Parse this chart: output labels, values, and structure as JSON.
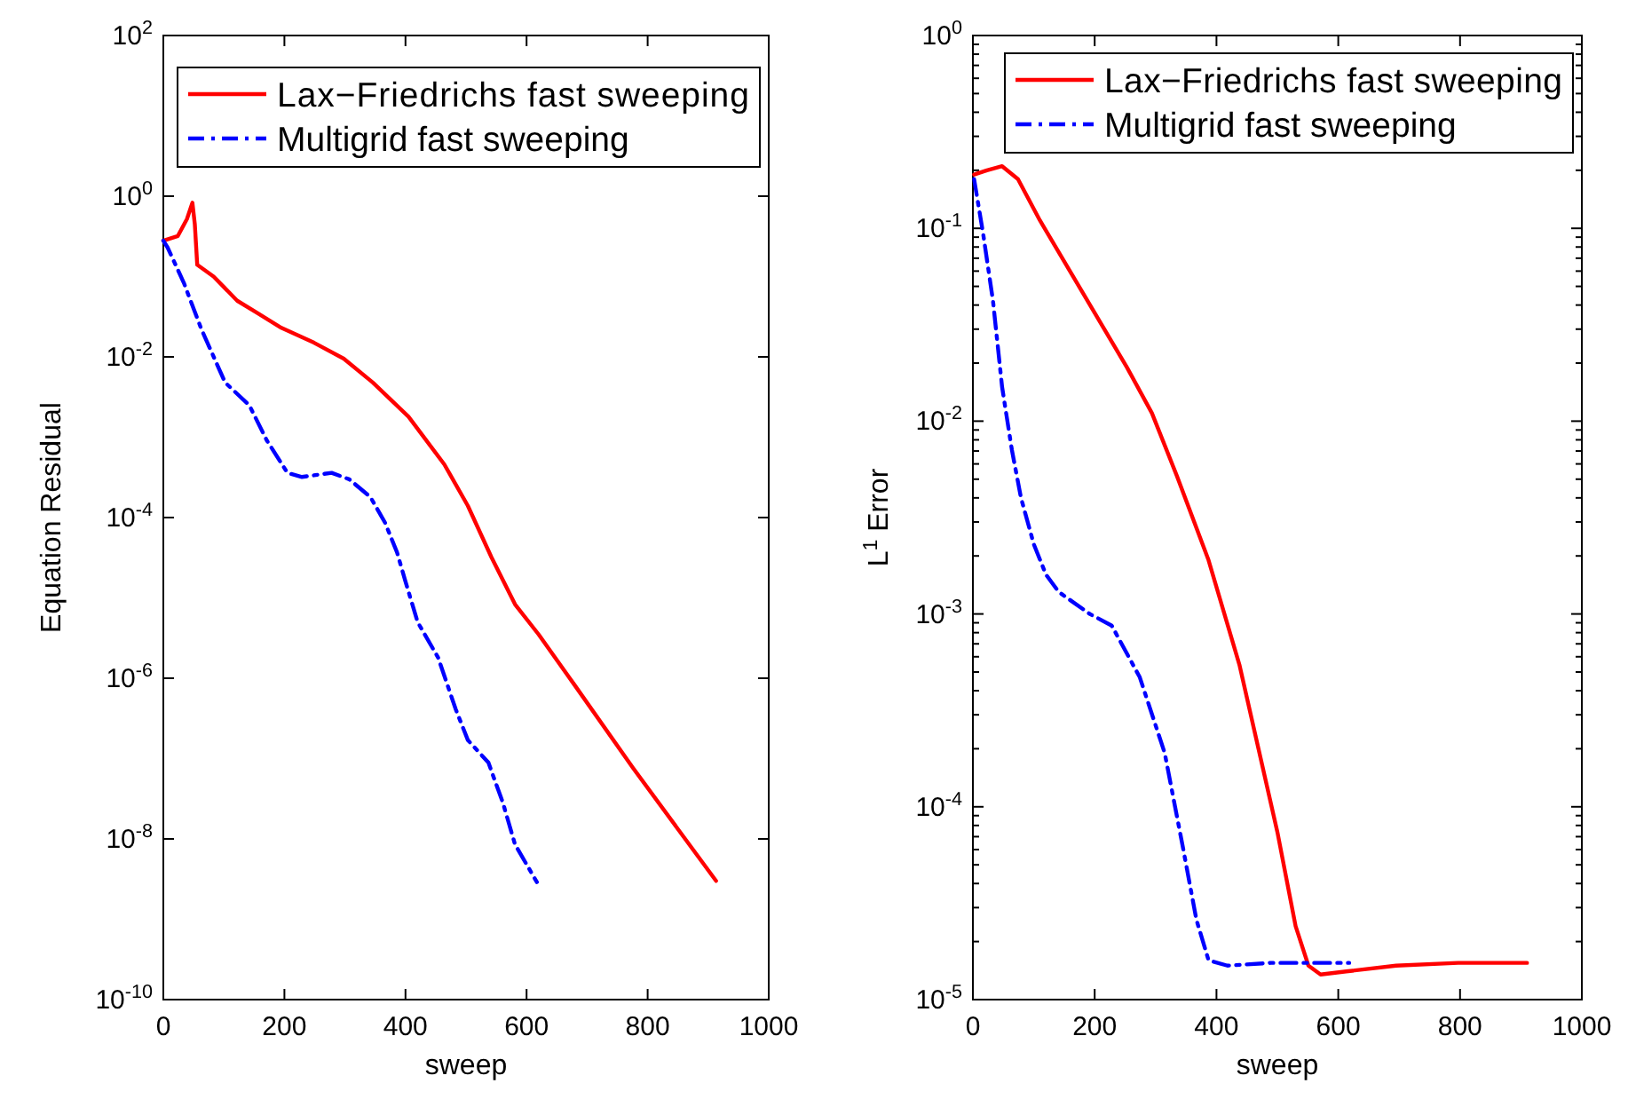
{
  "chart_data": [
    {
      "type": "line",
      "xlabel": "sweep",
      "ylabel": "Equation Residual",
      "log": "y",
      "xlim": [
        0,
        1000
      ],
      "xticks": [
        0,
        200,
        400,
        600,
        800,
        1000
      ],
      "ylim": [
        1e-10,
        100
      ],
      "yticks": [
        {
          "value": 1e-10,
          "label": "10$^{-10}$"
        },
        {
          "value": 1e-08,
          "label": "10$^{-8}$"
        },
        {
          "value": 1e-06,
          "label": "10$^{-6}$"
        },
        {
          "value": 0.0001,
          "label": "10$^{-4}$"
        },
        {
          "value": 0.01,
          "label": "10$^{-2}$"
        },
        {
          "value": 1,
          "label": "10$^{0}$"
        },
        {
          "value": 100,
          "label": "10$^{2}$"
        }
      ],
      "legend": "top right",
      "grid": false,
      "series": [
        {
          "name": "Lax−Friedrichs fast sweeping",
          "color": "#ff0000",
          "line_style": "solid",
          "x": [
            0,
            24,
            39,
            48,
            52,
            56,
            83,
            122,
            156,
            195,
            249,
            298,
            346,
            405,
            464,
            503,
            542,
            581,
            620,
            678,
            776,
            913
          ],
          "values": [
            0.28,
            0.32,
            0.52,
            0.83,
            0.45,
            0.14,
            0.1,
            0.05,
            0.035,
            0.023,
            0.015,
            0.0095,
            0.0048,
            0.0018,
            0.00046,
            0.00014,
            3.2e-05,
            8.3e-06,
            3.5e-06,
            8.5e-07,
            7.6e-08,
            3e-09
          ]
        },
        {
          "name": "Multigrid fast sweeping",
          "color": "#0000ff",
          "line_style": "dashdot",
          "x": [
            0,
            7,
            34,
            63,
            102,
            142,
            171,
            205,
            229,
            278,
            307,
            342,
            366,
            386,
            400,
            420,
            454,
            483,
            503,
            537,
            561,
            581,
            617
          ],
          "values": [
            0.28,
            0.23,
            0.083,
            0.022,
            0.0048,
            0.0025,
            0.00091,
            0.00036,
            0.00032,
            0.00036,
            0.0003,
            0.00018,
            8.7e-05,
            3.7e-05,
            1.6e-05,
            5e-06,
            1.8e-06,
            4.1e-07,
            1.7e-07,
            8.9e-08,
            2.8e-08,
            8.5e-09,
            2.9e-09
          ]
        }
      ]
    },
    {
      "type": "line",
      "xlabel": "sweep",
      "ylabel": "L$^{1}$ Error",
      "log": "y",
      "xlim": [
        0,
        1000
      ],
      "xticks": [
        0,
        200,
        400,
        600,
        800,
        1000
      ],
      "ylim": [
        1e-05,
        1
      ],
      "yticks": [
        {
          "value": 1e-05,
          "label": "10$^{-5}$"
        },
        {
          "value": 2e-05,
          "label": null
        },
        {
          "value": 3e-05,
          "label": null
        },
        {
          "value": 4e-05,
          "label": null
        },
        {
          "value": 5e-05,
          "label": null
        },
        {
          "value": 6e-05,
          "label": null
        },
        {
          "value": 7e-05,
          "label": null
        },
        {
          "value": 8e-05,
          "label": null
        },
        {
          "value": 9e-05,
          "label": null
        },
        {
          "value": 0.0001,
          "label": "10$^{-4}$"
        },
        {
          "value": 0.0002,
          "label": null
        },
        {
          "value": 0.0003,
          "label": null
        },
        {
          "value": 0.0004,
          "label": null
        },
        {
          "value": 0.0005,
          "label": null
        },
        {
          "value": 0.0006,
          "label": null
        },
        {
          "value": 0.0007,
          "label": null
        },
        {
          "value": 0.0008,
          "label": null
        },
        {
          "value": 0.0009,
          "label": null
        },
        {
          "value": 0.001,
          "label": "10$^{-3}$"
        },
        {
          "value": 0.002,
          "label": null
        },
        {
          "value": 0.003,
          "label": null
        },
        {
          "value": 0.004,
          "label": null
        },
        {
          "value": 0.005,
          "label": null
        },
        {
          "value": 0.006,
          "label": null
        },
        {
          "value": 0.007,
          "label": null
        },
        {
          "value": 0.008,
          "label": null
        },
        {
          "value": 0.009,
          "label": null
        },
        {
          "value": 0.01,
          "label": "10$^{-2}$"
        },
        {
          "value": 0.02,
          "label": null
        },
        {
          "value": 0.03,
          "label": null
        },
        {
          "value": 0.04,
          "label": null
        },
        {
          "value": 0.05,
          "label": null
        },
        {
          "value": 0.06,
          "label": null
        },
        {
          "value": 0.07,
          "label": null
        },
        {
          "value": 0.08,
          "label": null
        },
        {
          "value": 0.09,
          "label": null
        },
        {
          "value": 0.1,
          "label": "10$^{-1}$"
        },
        {
          "value": 0.2,
          "label": null
        },
        {
          "value": 0.3,
          "label": null
        },
        {
          "value": 0.4,
          "label": null
        },
        {
          "value": 0.5,
          "label": null
        },
        {
          "value": 0.6,
          "label": null
        },
        {
          "value": 0.7,
          "label": null
        },
        {
          "value": 0.8,
          "label": null
        },
        {
          "value": 0.9,
          "label": null
        },
        {
          "value": 1,
          "label": "10$^{0}$"
        }
      ],
      "legend": "top right",
      "grid": false,
      "series": [
        {
          "name": "Lax−Friedrichs fast sweeping",
          "color": "#ff0000",
          "line_style": "solid",
          "x": [
            2,
            23,
            48,
            74,
            110,
            171,
            253,
            294,
            335,
            387,
            438,
            469,
            500,
            530,
            551,
            571,
            613,
            695,
            797,
            910
          ],
          "values": [
            0.19,
            0.2,
            0.21,
            0.18,
            0.11,
            0.052,
            0.019,
            0.011,
            0.0052,
            0.0019,
            0.00054,
            0.0002,
            7.4e-05,
            2.4e-05,
            1.5e-05,
            1.35e-05,
            1.4e-05,
            1.5e-05,
            1.55e-05,
            1.55e-05
          ]
        },
        {
          "name": "Multigrid fast sweeping",
          "color": "#0000ff",
          "line_style": "dashdot",
          "x": [
            2,
            17,
            33,
            48,
            64,
            79,
            100,
            120,
            141,
            192,
            228,
            274,
            315,
            346,
            367,
            387,
            418,
            489,
            618
          ],
          "values": [
            0.18,
            0.093,
            0.042,
            0.015,
            0.0071,
            0.004,
            0.0023,
            0.0016,
            0.0013,
            0.001,
            0.00087,
            0.00047,
            0.00019,
            5.9e-05,
            2.6e-05,
            1.6e-05,
            1.5e-05,
            1.55e-05,
            1.55e-05
          ]
        }
      ]
    }
  ]
}
